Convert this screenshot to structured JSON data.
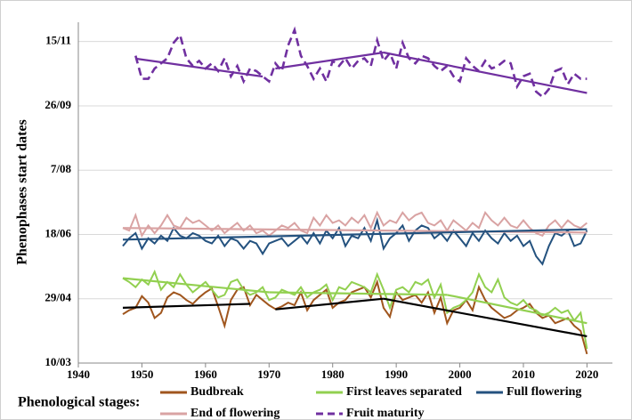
{
  "chart_data": {
    "type": "line",
    "y_axis_label": "Phenophases start dates",
    "legend_title": "Phenological stages:",
    "xlim": [
      1940,
      2024
    ],
    "xticks": [
      1940,
      1950,
      1960,
      1970,
      1980,
      1990,
      2000,
      2010,
      2020
    ],
    "ylim": [
      69,
      334
    ],
    "yticks": [
      {
        "value": 69,
        "label": "10/03"
      },
      {
        "value": 119,
        "label": "29/04"
      },
      {
        "value": 169,
        "label": "18/06"
      },
      {
        "value": 219,
        "label": "7/08"
      },
      {
        "value": 269,
        "label": "26/09"
      },
      {
        "value": 319,
        "label": "15/11"
      }
    ],
    "grid": true,
    "series": [
      {
        "name": "Budbreak",
        "color": "#a0561e",
        "dash": false,
        "x": [
          1947,
          1948,
          1949,
          1950,
          1951,
          1952,
          1953,
          1954,
          1955,
          1956,
          1957,
          1958,
          1959,
          1960,
          1961,
          1962,
          1963,
          1964,
          1965,
          1966,
          1967,
          1968,
          1969,
          1970,
          1971,
          1972,
          1973,
          1974,
          1975,
          1976,
          1977,
          1978,
          1979,
          1980,
          1981,
          1982,
          1983,
          1984,
          1985,
          1986,
          1987,
          1988,
          1989,
          1990,
          1991,
          1992,
          1993,
          1994,
          1995,
          1996,
          1997,
          1998,
          1999,
          2000,
          2001,
          2002,
          2003,
          2004,
          2005,
          2006,
          2007,
          2008,
          2009,
          2010,
          2011,
          2012,
          2013,
          2014,
          2015,
          2016,
          2017,
          2018,
          2019,
          2020
        ],
        "values": [
          107,
          110,
          112,
          121,
          116,
          104,
          108,
          120,
          124,
          122,
          118,
          115,
          120,
          124,
          127,
          113,
          98,
          118,
          126,
          128,
          114,
          122,
          118,
          114,
          111,
          113,
          116,
          114,
          124,
          110,
          118,
          122,
          126,
          112,
          116,
          118,
          124,
          126,
          128,
          120,
          132,
          112,
          105,
          124,
          118,
          120,
          122,
          116,
          124,
          108,
          120,
          100,
          110,
          112,
          118,
          110,
          128,
          118,
          112,
          108,
          104,
          106,
          110,
          112,
          115,
          108,
          104,
          106,
          100,
          102,
          104,
          98,
          94,
          76
        ]
      },
      {
        "name": "First leaves separated",
        "color": "#92d050",
        "dash": false,
        "x": [
          1947,
          1948,
          1949,
          1950,
          1951,
          1952,
          1953,
          1954,
          1955,
          1956,
          1957,
          1958,
          1959,
          1960,
          1961,
          1962,
          1963,
          1964,
          1965,
          1966,
          1967,
          1968,
          1969,
          1970,
          1971,
          1972,
          1973,
          1974,
          1975,
          1976,
          1977,
          1978,
          1979,
          1980,
          1981,
          1982,
          1983,
          1984,
          1985,
          1986,
          1987,
          1988,
          1989,
          1990,
          1991,
          1992,
          1993,
          1994,
          1995,
          1996,
          1997,
          1998,
          1999,
          2000,
          2001,
          2002,
          2003,
          2004,
          2005,
          2006,
          2007,
          2008,
          2009,
          2010,
          2011,
          2012,
          2013,
          2014,
          2015,
          2016,
          2017,
          2018,
          2019,
          2020
        ],
        "values": [
          135,
          132,
          128,
          134,
          130,
          140,
          126,
          132,
          128,
          138,
          130,
          124,
          128,
          132,
          126,
          120,
          122,
          132,
          134,
          126,
          122,
          124,
          128,
          118,
          120,
          126,
          124,
          122,
          128,
          120,
          124,
          126,
          130,
          118,
          128,
          126,
          132,
          130,
          128,
          124,
          138,
          126,
          112,
          126,
          128,
          124,
          132,
          130,
          134,
          120,
          130,
          108,
          112,
          114,
          118,
          124,
          138,
          128,
          124,
          134,
          120,
          116,
          114,
          118,
          112,
          110,
          106,
          108,
          112,
          108,
          110,
          102,
          108,
          80
        ]
      },
      {
        "name": "Full flowering",
        "color": "#24527f",
        "dash": false,
        "x": [
          1947,
          1948,
          1949,
          1950,
          1951,
          1952,
          1953,
          1954,
          1955,
          1956,
          1957,
          1958,
          1959,
          1960,
          1961,
          1962,
          1963,
          1964,
          1965,
          1966,
          1967,
          1968,
          1969,
          1970,
          1971,
          1972,
          1973,
          1974,
          1975,
          1976,
          1977,
          1978,
          1979,
          1980,
          1981,
          1982,
          1983,
          1984,
          1985,
          1986,
          1987,
          1988,
          1989,
          1990,
          1991,
          1992,
          1993,
          1994,
          1995,
          1996,
          1997,
          1998,
          1999,
          2000,
          2001,
          2002,
          2003,
          2004,
          2005,
          2006,
          2007,
          2008,
          2009,
          2010,
          2011,
          2012,
          2013,
          2014,
          2015,
          2016,
          2017,
          2018,
          2019,
          2020
        ],
        "values": [
          160,
          166,
          170,
          158,
          166,
          162,
          168,
          164,
          174,
          168,
          166,
          170,
          168,
          164,
          162,
          168,
          160,
          166,
          164,
          158,
          164,
          162,
          154,
          162,
          164,
          166,
          160,
          164,
          168,
          162,
          170,
          162,
          172,
          166,
          174,
          160,
          168,
          166,
          174,
          164,
          180,
          158,
          166,
          170,
          176,
          164,
          172,
          176,
          174,
          166,
          170,
          164,
          172,
          166,
          160,
          170,
          164,
          172,
          166,
          162,
          170,
          164,
          168,
          160,
          164,
          152,
          146,
          160,
          170,
          168,
          172,
          160,
          162,
          172
        ]
      },
      {
        "name": "End of flowering",
        "color": "#d9a3a3",
        "dash": false,
        "x": [
          1947,
          1948,
          1949,
          1950,
          1951,
          1952,
          1953,
          1954,
          1955,
          1956,
          1957,
          1958,
          1959,
          1960,
          1961,
          1962,
          1963,
          1964,
          1965,
          1966,
          1967,
          1968,
          1969,
          1970,
          1971,
          1972,
          1973,
          1974,
          1975,
          1976,
          1977,
          1978,
          1979,
          1980,
          1981,
          1982,
          1983,
          1984,
          1985,
          1986,
          1987,
          1988,
          1989,
          1990,
          1991,
          1992,
          1993,
          1994,
          1995,
          1996,
          1997,
          1998,
          1999,
          2000,
          2001,
          2002,
          2003,
          2004,
          2005,
          2006,
          2007,
          2008,
          2009,
          2010,
          2011,
          2012,
          2013,
          2014,
          2015,
          2016,
          2017,
          2018,
          2019,
          2020
        ],
        "values": [
          174,
          172,
          184,
          168,
          176,
          170,
          176,
          184,
          176,
          174,
          182,
          178,
          180,
          176,
          172,
          176,
          170,
          174,
          178,
          172,
          176,
          170,
          172,
          168,
          172,
          176,
          174,
          178,
          172,
          170,
          182,
          176,
          184,
          178,
          180,
          176,
          182,
          178,
          184,
          174,
          186,
          176,
          180,
          178,
          186,
          180,
          184,
          186,
          178,
          176,
          180,
          172,
          180,
          176,
          172,
          178,
          174,
          186,
          180,
          176,
          182,
          176,
          174,
          180,
          174,
          170,
          168,
          176,
          180,
          174,
          180,
          176,
          174,
          178
        ]
      },
      {
        "name": "Fruit maturity",
        "color": "#7030a0",
        "dash": true,
        "x": [
          1949,
          1950,
          1951,
          1952,
          1953,
          1954,
          1955,
          1956,
          1957,
          1958,
          1959,
          1960,
          1961,
          1962,
          1963,
          1964,
          1965,
          1966,
          1967,
          1968,
          1969,
          1970,
          1971,
          1972,
          1973,
          1974,
          1975,
          1976,
          1977,
          1978,
          1979,
          1980,
          1981,
          1982,
          1983,
          1984,
          1985,
          1986,
          1987,
          1988,
          1989,
          1990,
          1991,
          1992,
          1993,
          1994,
          1995,
          1996,
          1997,
          1998,
          1999,
          2000,
          2001,
          2002,
          2003,
          2004,
          2005,
          2006,
          2007,
          2008,
          2009,
          2010,
          2011,
          2012,
          2013,
          2014,
          2015,
          2016,
          2017,
          2018,
          2019,
          2020
        ],
        "values": [
          308,
          290,
          290,
          298,
          302,
          306,
          318,
          324,
          306,
          300,
          304,
          298,
          302,
          296,
          306,
          292,
          300,
          288,
          298,
          296,
          292,
          288,
          302,
          296,
          316,
          328,
          308,
          300,
          290,
          298,
          288,
          304,
          300,
          306,
          298,
          304,
          306,
          300,
          320,
          304,
          310,
          298,
          318,
          306,
          302,
          308,
          306,
          300,
          296,
          300,
          292,
          288,
          306,
          300,
          296,
          304,
          298,
          300,
          304,
          302,
          284,
          292,
          294,
          280,
          276,
          282,
          296,
          298,
          286,
          294,
          290,
          290
        ]
      }
    ],
    "trend_lines": [
      {
        "color": "#7030a0",
        "x": [
          1949,
          1969
        ],
        "values": [
          305.7,
          291.8
        ]
      },
      {
        "color": "#7030a0",
        "x": [
          1971,
          1988
        ],
        "values": [
          298,
          310.5
        ]
      },
      {
        "color": "#7030a0",
        "x": [
          1988,
          2020
        ],
        "values": [
          310.5,
          279
        ]
      },
      {
        "color": "#d9a3a3",
        "x": [
          1947,
          2020
        ],
        "values": [
          174,
          170.4
        ]
      },
      {
        "color": "#24527f",
        "x": [
          1947,
          2020
        ],
        "values": [
          165,
          173
        ]
      },
      {
        "color": "#92d050",
        "x": [
          1947,
          1970
        ],
        "values": [
          135,
          124
        ]
      },
      {
        "color": "#92d050",
        "x": [
          1970,
          1998
        ],
        "values": [
          124,
          122
        ]
      },
      {
        "color": "#92d050",
        "x": [
          1998,
          2020
        ],
        "values": [
          122,
          100
        ]
      },
      {
        "color": "#000000",
        "x": [
          1947,
          1967
        ],
        "values": [
          112,
          115
        ]
      },
      {
        "color": "#000000",
        "x": [
          1971,
          1988
        ],
        "values": [
          110.7,
          119
        ]
      },
      {
        "color": "#000000",
        "x": [
          1988,
          2020
        ],
        "values": [
          119,
          89.8
        ]
      }
    ]
  }
}
